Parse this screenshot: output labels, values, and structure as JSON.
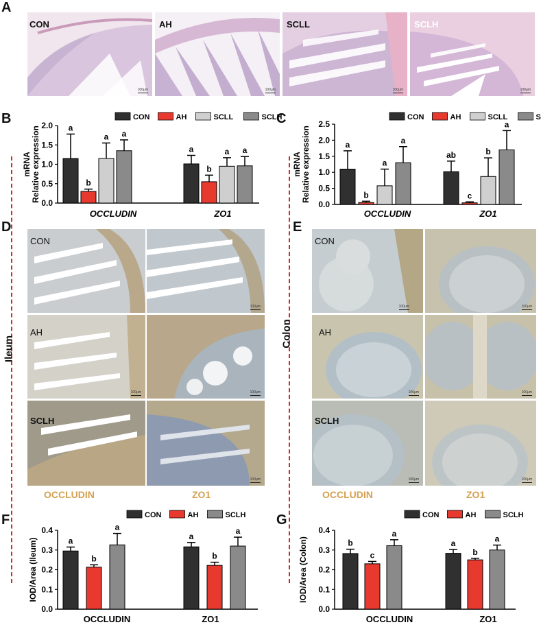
{
  "panels": {
    "A": "A",
    "B": "B",
    "C": "C",
    "D": "D",
    "E": "E",
    "F": "F",
    "G": "G"
  },
  "row_a": {
    "tiles": [
      "CON",
      "AH",
      "SCLL",
      "SCLH"
    ],
    "scale": "100μm"
  },
  "side_labels": {
    "ileum": "Ileum",
    "colon": "Colon"
  },
  "panel_d": {
    "rows": [
      "CON",
      "AH",
      "SCLH"
    ],
    "cols": [
      "OCCLUDIN",
      "ZO1"
    ],
    "scale": "100μm"
  },
  "panel_e": {
    "rows": [
      "CON",
      "AH",
      "SCLH"
    ],
    "cols": [
      "OCCLUDIN",
      "ZO1"
    ],
    "scale": "100μm"
  },
  "colors": {
    "CON": "#303030",
    "AH": "#e8392f",
    "SCLL": "#cfcfcf",
    "SCLH": "#8a8a8a"
  },
  "chart_data": [
    {
      "id": "B",
      "type": "bar",
      "ylabel": "mRNA Relative expression",
      "ylim": [
        0,
        2.0
      ],
      "yticks": [
        "0.0",
        "0.5",
        "1.0",
        "1.5",
        "2.0"
      ],
      "categories": [
        "OCCLUDIN",
        "ZO1"
      ],
      "legend": [
        "CON",
        "AH",
        "SCLL",
        "SCLH"
      ],
      "series": [
        {
          "name": "CON",
          "values": [
            1.15,
            1.01
          ],
          "errors": [
            0.63,
            0.22
          ],
          "letters": [
            "a",
            "a"
          ]
        },
        {
          "name": "AH",
          "values": [
            0.3,
            0.55
          ],
          "errors": [
            0.06,
            0.17
          ],
          "letters": [
            "b",
            "b"
          ]
        },
        {
          "name": "SCLL",
          "values": [
            1.15,
            0.95
          ],
          "errors": [
            0.4,
            0.22
          ],
          "letters": [
            "a",
            "a"
          ]
        },
        {
          "name": "SCLH",
          "values": [
            1.35,
            0.96
          ],
          "errors": [
            0.28,
            0.24
          ],
          "letters": [
            "a",
            "a"
          ]
        }
      ]
    },
    {
      "id": "C",
      "type": "bar",
      "ylabel": "mRNA Relative expression",
      "ylim": [
        0,
        2.5
      ],
      "yticks": [
        "0.0",
        "0.5",
        "1.0",
        "1.5",
        "2.0",
        "2.5"
      ],
      "categories": [
        "OCCLUDIN",
        "ZO1"
      ],
      "legend": [
        "CON",
        "AH",
        "SCLL",
        "SCLH"
      ],
      "series": [
        {
          "name": "CON",
          "values": [
            1.1,
            1.02
          ],
          "errors": [
            0.57,
            0.33
          ],
          "letters": [
            "a",
            "ab"
          ]
        },
        {
          "name": "AH",
          "values": [
            0.06,
            0.05
          ],
          "errors": [
            0.04,
            0.03
          ],
          "letters": [
            "b",
            "c"
          ]
        },
        {
          "name": "SCLL",
          "values": [
            0.58,
            0.87
          ],
          "errors": [
            0.52,
            0.58
          ],
          "letters": [
            "a",
            "b"
          ]
        },
        {
          "name": "SCLH",
          "values": [
            1.3,
            1.7
          ],
          "errors": [
            0.5,
            0.6
          ],
          "letters": [
            "a",
            "a"
          ]
        }
      ]
    },
    {
      "id": "F",
      "type": "bar",
      "ylabel": "IOD/Area (Ileum)",
      "ylim": [
        0,
        0.4
      ],
      "yticks": [
        "0.0",
        "0.1",
        "0.2",
        "0.3",
        "0.4"
      ],
      "categories": [
        "OCCLUDIN",
        "ZO1"
      ],
      "legend": [
        "CON",
        "AH",
        "SCLH"
      ],
      "series": [
        {
          "name": "CON",
          "values": [
            0.295,
            0.316
          ],
          "errors": [
            0.02,
            0.022
          ],
          "letters": [
            "a",
            "a"
          ]
        },
        {
          "name": "AH",
          "values": [
            0.213,
            0.222
          ],
          "errors": [
            0.012,
            0.016
          ],
          "letters": [
            "b",
            "b"
          ]
        },
        {
          "name": "SCLH",
          "values": [
            0.326,
            0.32
          ],
          "errors": [
            0.058,
            0.045
          ],
          "letters": [
            "a",
            "a"
          ]
        }
      ]
    },
    {
      "id": "G",
      "type": "bar",
      "ylabel": "IOD/Area (Colon)",
      "ylim": [
        0,
        0.4
      ],
      "yticks": [
        "0.0",
        "0.1",
        "0.2",
        "0.3",
        "0.4"
      ],
      "categories": [
        "OCCLUDIN",
        "ZO1"
      ],
      "legend": [
        "CON",
        "AH",
        "SCLH"
      ],
      "series": [
        {
          "name": "CON",
          "values": [
            0.282,
            0.283
          ],
          "errors": [
            0.022,
            0.02
          ],
          "letters": [
            "b",
            "a"
          ]
        },
        {
          "name": "AH",
          "values": [
            0.23,
            0.25
          ],
          "errors": [
            0.012,
            0.008
          ],
          "letters": [
            "c",
            "b"
          ]
        },
        {
          "name": "SCLH",
          "values": [
            0.322,
            0.3
          ],
          "errors": [
            0.03,
            0.025
          ],
          "letters": [
            "a",
            "a"
          ]
        }
      ]
    }
  ]
}
